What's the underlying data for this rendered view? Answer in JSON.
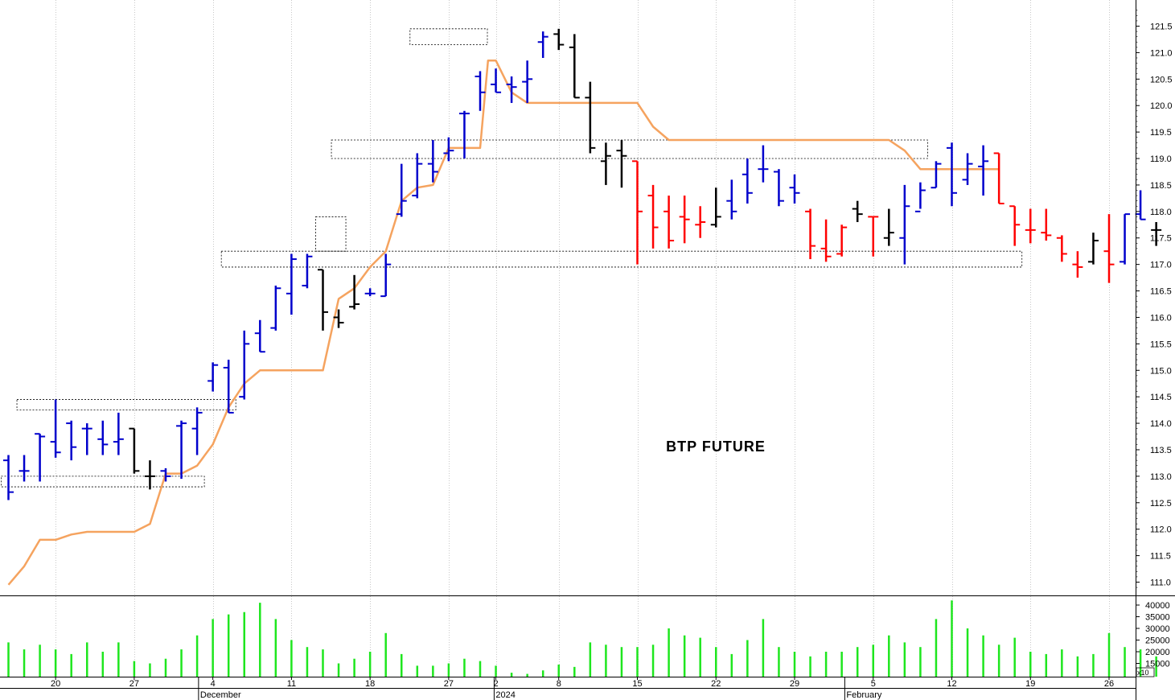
{
  "chart_data": {
    "type": "bar",
    "subtype": "ohlc",
    "title": "BTP FUTURE",
    "ylim": [
      110.6,
      121.9
    ],
    "price_ticks": [
      111.0,
      111.5,
      112.0,
      112.5,
      113.0,
      113.5,
      114.0,
      114.5,
      115.0,
      115.5,
      116.0,
      116.5,
      117.0,
      117.5,
      118.0,
      118.5,
      119.0,
      119.5,
      120.0,
      120.5,
      121.0,
      121.5
    ],
    "volume_ylim": [
      10000,
      43000
    ],
    "volume_ticks": [
      15000,
      20000,
      25000,
      30000,
      35000,
      40000
    ],
    "volume_multiplier_label": "x10",
    "x_tick_labels": [
      {
        "idx": 3,
        "label": "20"
      },
      {
        "idx": 8,
        "label": "27"
      },
      {
        "idx": 13,
        "label": "4"
      },
      {
        "idx": 18,
        "label": "11"
      },
      {
        "idx": 23,
        "label": "18"
      },
      {
        "idx": 28,
        "label": "27"
      },
      {
        "idx": 31,
        "label": "2"
      },
      {
        "idx": 35,
        "label": "8"
      },
      {
        "idx": 40,
        "label": "15"
      },
      {
        "idx": 45,
        "label": "22"
      },
      {
        "idx": 50,
        "label": "29"
      },
      {
        "idx": 55,
        "label": "5"
      },
      {
        "idx": 60,
        "label": "12"
      },
      {
        "idx": 65,
        "label": "19"
      },
      {
        "idx": 70,
        "label": "26"
      }
    ],
    "month_labels": [
      {
        "idx": 12.5,
        "label": "December"
      },
      {
        "idx": 31.3,
        "label": "2024"
      },
      {
        "idx": 53.6,
        "label": "February"
      }
    ],
    "colors": {
      "up": "#0000cc",
      "down": "#ff0000",
      "neutral": "#000000",
      "band": "#f5a35f",
      "volume": "#1ee61e"
    },
    "bars": [
      {
        "o": 113.3,
        "h": 113.4,
        "l": 112.55,
        "c": 112.7,
        "col": "b",
        "v": 24000
      },
      {
        "o": 113.1,
        "h": 113.4,
        "l": 112.9,
        "c": 113.1,
        "col": "b",
        "v": 21000
      },
      {
        "o": 113.8,
        "h": 113.8,
        "l": 112.9,
        "c": 113.75,
        "col": "b",
        "v": 23000
      },
      {
        "o": 113.65,
        "h": 114.45,
        "l": 113.35,
        "c": 113.45,
        "col": "b",
        "v": 21000
      },
      {
        "o": 114.0,
        "h": 114.05,
        "l": 113.3,
        "c": 113.55,
        "col": "b",
        "v": 19000
      },
      {
        "o": 113.9,
        "h": 114.0,
        "l": 113.4,
        "c": 113.9,
        "col": "b",
        "v": 24000
      },
      {
        "o": 113.7,
        "h": 114.05,
        "l": 113.4,
        "c": 113.6,
        "col": "b",
        "v": 20000
      },
      {
        "o": 113.65,
        "h": 114.2,
        "l": 113.4,
        "c": 113.7,
        "col": "b",
        "v": 24000
      },
      {
        "o": 113.9,
        "h": 113.9,
        "l": 113.05,
        "c": 113.1,
        "col": "n",
        "v": 16000
      },
      {
        "o": 113.0,
        "h": 113.3,
        "l": 112.75,
        "c": 113.0,
        "col": "n",
        "v": 15000
      },
      {
        "o": 113.1,
        "h": 113.15,
        "l": 112.9,
        "c": 113.0,
        "col": "b",
        "v": 17000
      },
      {
        "o": 113.95,
        "h": 114.05,
        "l": 112.95,
        "c": 114.0,
        "col": "b",
        "v": 21000
      },
      {
        "o": 113.9,
        "h": 114.3,
        "l": 113.4,
        "c": 114.2,
        "col": "b",
        "v": 27000
      },
      {
        "o": 114.8,
        "h": 115.15,
        "l": 114.6,
        "c": 115.1,
        "col": "b",
        "v": 34000
      },
      {
        "o": 115.05,
        "h": 115.2,
        "l": 114.2,
        "c": 114.2,
        "col": "b",
        "v": 36000
      },
      {
        "o": 114.5,
        "h": 115.75,
        "l": 114.45,
        "c": 115.5,
        "col": "b",
        "v": 37000
      },
      {
        "o": 115.7,
        "h": 115.95,
        "l": 115.35,
        "c": 115.35,
        "col": "b",
        "v": 41000
      },
      {
        "o": 115.8,
        "h": 116.6,
        "l": 115.75,
        "c": 116.55,
        "col": "b",
        "v": 34000
      },
      {
        "o": 116.45,
        "h": 117.2,
        "l": 116.05,
        "c": 117.1,
        "col": "b",
        "v": 25000
      },
      {
        "o": 116.6,
        "h": 117.2,
        "l": 116.55,
        "c": 117.15,
        "col": "b",
        "v": 22000
      },
      {
        "o": 116.9,
        "h": 116.9,
        "l": 115.75,
        "c": 116.1,
        "col": "n",
        "v": 21000
      },
      {
        "o": 116.0,
        "h": 116.15,
        "l": 115.8,
        "c": 115.9,
        "col": "n",
        "v": 15000
      },
      {
        "o": 116.2,
        "h": 116.8,
        "l": 116.15,
        "c": 116.25,
        "col": "n",
        "v": 17000
      },
      {
        "o": 116.45,
        "h": 116.55,
        "l": 116.4,
        "c": 116.45,
        "col": "b",
        "v": 20000
      },
      {
        "o": 116.4,
        "h": 117.2,
        "l": 116.4,
        "c": 117.0,
        "col": "b",
        "v": 28000
      },
      {
        "o": 117.95,
        "h": 118.9,
        "l": 117.9,
        "c": 118.2,
        "col": "b",
        "v": 19000
      },
      {
        "o": 118.3,
        "h": 119.1,
        "l": 118.25,
        "c": 118.9,
        "col": "b",
        "v": 14000
      },
      {
        "o": 118.9,
        "h": 119.35,
        "l": 118.55,
        "c": 118.75,
        "col": "b",
        "v": 14000
      },
      {
        "o": 119.1,
        "h": 119.4,
        "l": 118.95,
        "c": 119.15,
        "col": "b",
        "v": 15000
      },
      {
        "o": 119.85,
        "h": 119.9,
        "l": 119.0,
        "c": 119.85,
        "col": "b",
        "v": 17000
      },
      {
        "o": 120.55,
        "h": 120.65,
        "l": 119.9,
        "c": 120.25,
        "col": "b",
        "v": 16000
      },
      {
        "o": 120.4,
        "h": 120.7,
        "l": 120.25,
        "c": 120.25,
        "col": "b",
        "v": 14000
      },
      {
        "o": 120.4,
        "h": 120.55,
        "l": 120.05,
        "c": 120.35,
        "col": "b",
        "v": 11000
      },
      {
        "o": 120.45,
        "h": 120.85,
        "l": 120.05,
        "c": 120.5,
        "col": "b",
        "v": 10500
      },
      {
        "o": 121.2,
        "h": 121.4,
        "l": 120.9,
        "c": 121.3,
        "col": "b",
        "v": 12000
      },
      {
        "o": 121.35,
        "h": 121.45,
        "l": 121.05,
        "c": 121.15,
        "col": "n",
        "v": 14500
      },
      {
        "o": 121.1,
        "h": 121.35,
        "l": 120.15,
        "c": 120.15,
        "col": "n",
        "v": 13500
      },
      {
        "o": 120.15,
        "h": 120.45,
        "l": 119.1,
        "c": 119.2,
        "col": "n",
        "v": 24000
      },
      {
        "o": 118.95,
        "h": 119.3,
        "l": 118.5,
        "c": 119.05,
        "col": "n",
        "v": 23000
      },
      {
        "o": 119.15,
        "h": 119.35,
        "l": 118.45,
        "c": 119.05,
        "col": "n",
        "v": 22000
      },
      {
        "o": 118.95,
        "h": 118.95,
        "l": 117.0,
        "c": 118.0,
        "col": "r",
        "v": 22000
      },
      {
        "o": 118.3,
        "h": 118.5,
        "l": 117.3,
        "c": 117.7,
        "col": "r",
        "v": 23000
      },
      {
        "o": 118.0,
        "h": 118.3,
        "l": 117.3,
        "c": 117.45,
        "col": "r",
        "v": 30000
      },
      {
        "o": 117.9,
        "h": 118.3,
        "l": 117.4,
        "c": 117.85,
        "col": "r",
        "v": 27000
      },
      {
        "o": 117.75,
        "h": 118.1,
        "l": 117.5,
        "c": 117.8,
        "col": "r",
        "v": 26000
      },
      {
        "o": 117.75,
        "h": 118.45,
        "l": 117.7,
        "c": 117.9,
        "col": "n",
        "v": 22000
      },
      {
        "o": 118.2,
        "h": 118.6,
        "l": 117.85,
        "c": 118.0,
        "col": "b",
        "v": 19000
      },
      {
        "o": 118.7,
        "h": 119.0,
        "l": 118.15,
        "c": 118.35,
        "col": "b",
        "v": 25000
      },
      {
        "o": 118.8,
        "h": 119.25,
        "l": 118.55,
        "c": 118.8,
        "col": "b",
        "v": 34000
      },
      {
        "o": 118.75,
        "h": 118.8,
        "l": 118.1,
        "c": 118.2,
        "col": "b",
        "v": 22000
      },
      {
        "o": 118.45,
        "h": 118.7,
        "l": 118.15,
        "c": 118.35,
        "col": "b",
        "v": 20000
      },
      {
        "o": 118.0,
        "h": 118.05,
        "l": 117.1,
        "c": 117.35,
        "col": "r",
        "v": 18000
      },
      {
        "o": 117.3,
        "h": 117.85,
        "l": 117.05,
        "c": 117.15,
        "col": "r",
        "v": 20000
      },
      {
        "o": 117.2,
        "h": 117.75,
        "l": 117.15,
        "c": 117.7,
        "col": "r",
        "v": 20000
      },
      {
        "o": 118.05,
        "h": 118.2,
        "l": 117.8,
        "c": 117.95,
        "col": "n",
        "v": 22000
      },
      {
        "o": 117.9,
        "h": 117.9,
        "l": 117.15,
        "c": 117.9,
        "col": "r",
        "v": 23000
      },
      {
        "o": 117.5,
        "h": 118.05,
        "l": 117.35,
        "c": 117.6,
        "col": "n",
        "v": 27000
      },
      {
        "o": 117.5,
        "h": 118.5,
        "l": 117.0,
        "c": 118.1,
        "col": "b",
        "v": 24000
      },
      {
        "o": 118.0,
        "h": 118.55,
        "l": 118.05,
        "c": 118.4,
        "col": "b",
        "v": 22000
      },
      {
        "o": 118.45,
        "h": 118.95,
        "l": 118.45,
        "c": 118.9,
        "col": "b",
        "v": 34000
      },
      {
        "o": 119.2,
        "h": 119.3,
        "l": 118.1,
        "c": 118.35,
        "col": "b",
        "v": 42000
      },
      {
        "o": 118.6,
        "h": 119.1,
        "l": 118.5,
        "c": 118.9,
        "col": "b",
        "v": 30000
      },
      {
        "o": 118.85,
        "h": 119.25,
        "l": 118.3,
        "c": 118.95,
        "col": "b",
        "v": 27000
      },
      {
        "o": 119.1,
        "h": 119.1,
        "l": 118.15,
        "c": 118.15,
        "col": "r",
        "v": 23000
      },
      {
        "o": 118.1,
        "h": 118.1,
        "l": 117.35,
        "c": 117.75,
        "col": "r",
        "v": 26000
      },
      {
        "o": 117.65,
        "h": 118.05,
        "l": 117.4,
        "c": 117.65,
        "col": "r",
        "v": 20000
      },
      {
        "o": 117.6,
        "h": 118.05,
        "l": 117.45,
        "c": 117.55,
        "col": "r",
        "v": 19000
      },
      {
        "o": 117.5,
        "h": 117.55,
        "l": 117.05,
        "c": 117.2,
        "col": "r",
        "v": 21000
      },
      {
        "o": 117.0,
        "h": 117.25,
        "l": 116.75,
        "c": 116.95,
        "col": "r",
        "v": 18000
      },
      {
        "o": 117.05,
        "h": 117.6,
        "l": 117.0,
        "c": 117.45,
        "col": "n",
        "v": 19000
      },
      {
        "o": 117.25,
        "h": 117.95,
        "l": 116.65,
        "c": 117.0,
        "col": "r",
        "v": 28000
      },
      {
        "o": 117.05,
        "h": 117.95,
        "l": 117.0,
        "c": 117.95,
        "col": "b",
        "v": 22000
      },
      {
        "o": 117.95,
        "h": 118.4,
        "l": 117.85,
        "c": 117.85,
        "col": "b",
        "v": 21000
      },
      {
        "o": 117.65,
        "h": 117.8,
        "l": 117.35,
        "c": 117.65,
        "col": "n",
        "v": 18000
      }
    ],
    "band_line": [
      {
        "idx": 0,
        "y": 110.95
      },
      {
        "idx": 1,
        "y": 111.3
      },
      {
        "idx": 2,
        "y": 111.8
      },
      {
        "idx": 3,
        "y": 111.8
      },
      {
        "idx": 4,
        "y": 111.9
      },
      {
        "idx": 5,
        "y": 111.95
      },
      {
        "idx": 8,
        "y": 111.95
      },
      {
        "idx": 9,
        "y": 112.1
      },
      {
        "idx": 10,
        "y": 113.05
      },
      {
        "idx": 11,
        "y": 113.05
      },
      {
        "idx": 12,
        "y": 113.2
      },
      {
        "idx": 13,
        "y": 113.6
      },
      {
        "idx": 14,
        "y": 114.3
      },
      {
        "idx": 15,
        "y": 114.75
      },
      {
        "idx": 16,
        "y": 115.0
      },
      {
        "idx": 20,
        "y": 115.0
      },
      {
        "idx": 21,
        "y": 116.35
      },
      {
        "idx": 22,
        "y": 116.55
      },
      {
        "idx": 23,
        "y": 116.95
      },
      {
        "idx": 24,
        "y": 117.25
      },
      {
        "idx": 25,
        "y": 118.2
      },
      {
        "idx": 26,
        "y": 118.45
      },
      {
        "idx": 27,
        "y": 118.5
      },
      {
        "idx": 28,
        "y": 119.2
      },
      {
        "idx": 29,
        "y": 119.2
      },
      {
        "idx": 30,
        "y": 119.2
      },
      {
        "idx": 30.5,
        "y": 120.85
      },
      {
        "idx": 31,
        "y": 120.85
      },
      {
        "idx": 32,
        "y": 120.25
      },
      {
        "idx": 33,
        "y": 120.05
      },
      {
        "idx": 40,
        "y": 120.05
      },
      {
        "idx": 41,
        "y": 119.6
      },
      {
        "idx": 42,
        "y": 119.35
      },
      {
        "idx": 45,
        "y": 119.35
      },
      {
        "idx": 56,
        "y": 119.35
      },
      {
        "idx": 57,
        "y": 119.15
      },
      {
        "idx": 58,
        "y": 118.8
      },
      {
        "idx": 63,
        "y": 118.8
      }
    ],
    "boxes": [
      {
        "i0": 0,
        "i1": 12,
        "y0": 112.8,
        "y1": 113.0
      },
      {
        "i0": 1,
        "i1": 14,
        "y0": 114.25,
        "y1": 114.45
      },
      {
        "i0": 14,
        "i1": 64,
        "y0": 116.95,
        "y1": 117.25
      },
      {
        "i0": 20,
        "i1": 21,
        "y0": 117.25,
        "y1": 117.9
      },
      {
        "i0": 21,
        "i1": 58,
        "y0": 119.0,
        "y1": 119.35
      },
      {
        "i0": 26,
        "i1": 30,
        "y0": 121.15,
        "y1": 121.45
      }
    ]
  }
}
